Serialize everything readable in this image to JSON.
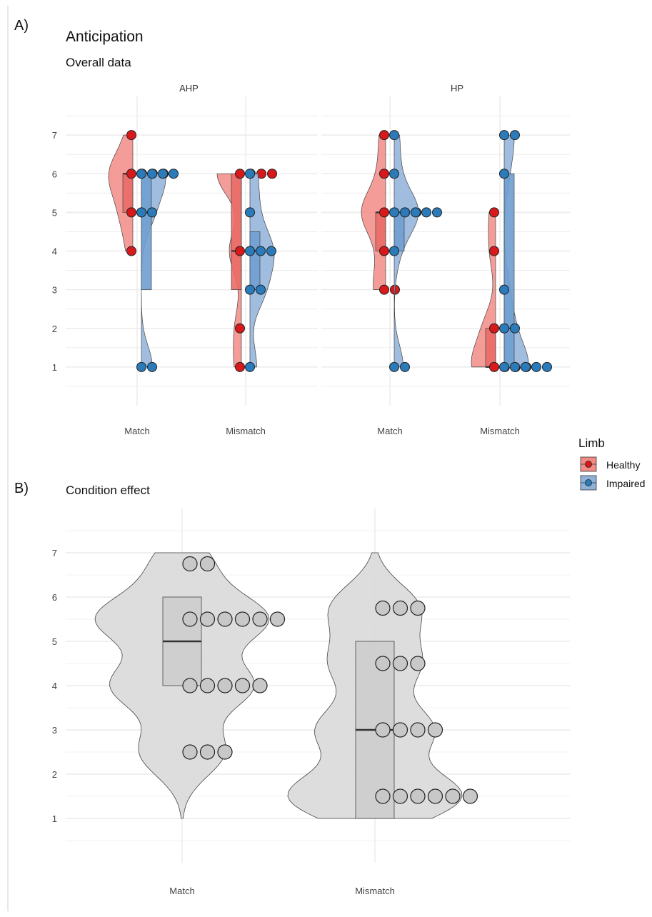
{
  "panel_labels": {
    "a": "A)",
    "b": "B)"
  },
  "colors": {
    "healthy_fill": "#f28b86",
    "healthy_point": "#d7191c",
    "impaired_fill": "#8fb2d9",
    "impaired_point": "#2b7bba",
    "grey_fill": "#d9d9d9",
    "grey_point": "#c8c8c8",
    "grid": "#ebebeb"
  },
  "legend": {
    "title": "Limb",
    "items": [
      {
        "label": "Healthy",
        "key": "healthy"
      },
      {
        "label": "Impaired",
        "key": "impaired"
      }
    ]
  },
  "chart_data": [
    {
      "type": "violin",
      "title": "Anticipation",
      "subtitle": "Overall data",
      "facets": [
        "AHP",
        "HP"
      ],
      "categories": [
        "Match",
        "Mismatch"
      ],
      "y_ticks": [
        1,
        2,
        3,
        4,
        5,
        6,
        7
      ],
      "ylim": [
        0,
        8
      ],
      "grid": true,
      "legend_position": "right",
      "series": [
        {
          "name": "Healthy",
          "groups": [
            {
              "facet": "AHP",
              "category": "Match",
              "points": [
                7,
                6,
                6,
                6,
                6,
                5,
                5,
                4
              ],
              "box": {
                "q1": 5,
                "median": 6,
                "q3": 6,
                "min": 4,
                "max": 7
              }
            },
            {
              "facet": "AHP",
              "category": "Mismatch",
              "points": [
                6,
                6,
                6,
                6,
                4,
                4,
                2,
                1
              ],
              "box": {
                "q1": 3,
                "median": 4,
                "q3": 6,
                "min": 1,
                "max": 6
              }
            },
            {
              "facet": "HP",
              "category": "Match",
              "points": [
                7,
                6,
                5,
                5,
                5,
                5,
                4,
                3,
                3
              ],
              "box": {
                "q1": 4,
                "median": 5,
                "q3": 5,
                "min": 3,
                "max": 7
              }
            },
            {
              "facet": "HP",
              "category": "Mismatch",
              "points": [
                5,
                4,
                2,
                2,
                1,
                1,
                1,
                1
              ],
              "box": {
                "q1": 1,
                "median": 1,
                "q3": 2,
                "min": 1,
                "max": 5
              }
            }
          ]
        },
        {
          "name": "Impaired",
          "groups": [
            {
              "facet": "AHP",
              "category": "Match",
              "points": [
                6,
                6,
                6,
                6,
                5,
                5,
                1,
                1
              ],
              "box": {
                "q1": 3,
                "median": 5,
                "q3": 6,
                "min": 1,
                "max": 6
              }
            },
            {
              "facet": "AHP",
              "category": "Mismatch",
              "points": [
                6,
                5,
                4,
                4,
                4,
                3,
                3,
                1
              ],
              "box": {
                "q1": 3,
                "median": 4,
                "q3": 4.5,
                "min": 1,
                "max": 6
              }
            },
            {
              "facet": "HP",
              "category": "Match",
              "points": [
                7,
                6,
                5,
                5,
                5,
                5,
                5,
                4,
                1,
                1
              ],
              "box": {
                "q1": 4,
                "median": 5,
                "q3": 5,
                "min": 1,
                "max": 7
              }
            },
            {
              "facet": "HP",
              "category": "Mismatch",
              "points": [
                7,
                7,
                6,
                3,
                2,
                2,
                1,
                1,
                1,
                1,
                1
              ],
              "box": {
                "q1": 1,
                "median": 2,
                "q3": 6,
                "min": 1,
                "max": 7
              }
            }
          ]
        }
      ]
    },
    {
      "type": "violin",
      "title": "",
      "subtitle": "Condition effect",
      "categories": [
        "Match",
        "Mismatch"
      ],
      "y_ticks": [
        1,
        2,
        3,
        4,
        5,
        6,
        7
      ],
      "ylim": [
        0,
        8
      ],
      "grid": true,
      "series": [
        {
          "name": "",
          "groups": [
            {
              "category": "Match",
              "points": [
                6.75,
                6.75,
                5.5,
                5.5,
                5.5,
                5.5,
                5.5,
                5.5,
                4,
                4,
                4,
                4,
                4,
                2.5,
                2.5,
                2.5
              ],
              "box": {
                "q1": 4,
                "median": 5,
                "q3": 6,
                "min": 1,
                "max": 7
              }
            },
            {
              "category": "Mismatch",
              "points": [
                5.75,
                5.75,
                5.75,
                4.5,
                4.5,
                4.5,
                3,
                3,
                3,
                3,
                1.5,
                1.5,
                1.5,
                1.5,
                1.5,
                1.5
              ],
              "box": {
                "q1": 1,
                "median": 3,
                "q3": 5,
                "min": 1,
                "max": 7
              }
            }
          ]
        }
      ]
    }
  ]
}
